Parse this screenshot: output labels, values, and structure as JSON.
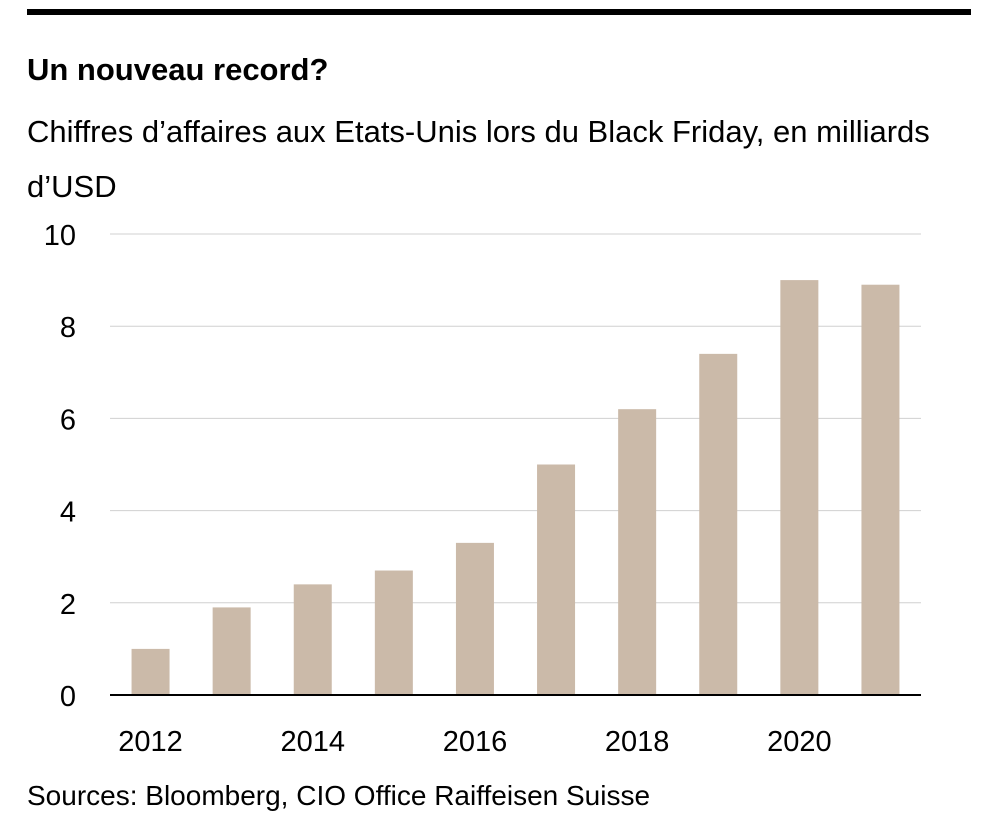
{
  "title": "Un nouveau record?",
  "subtitle": "Chiffres d’affaires aux Etats-Unis lors du Black Friday, en milliards d’USD",
  "source": "Sources: Bloomberg, CIO Office Raiffeisen Suisse",
  "colors": {
    "bar": "#cbbaa9",
    "grid": "#d0d0d0",
    "axis": "#000000",
    "rule": "#000000"
  },
  "chart_data": {
    "type": "bar",
    "title": "Un nouveau record?",
    "subtitle": "Chiffres d’affaires aux Etats-Unis lors du Black Friday, en milliards d’USD",
    "categories": [
      "2012",
      "2013",
      "2014",
      "2015",
      "2016",
      "2017",
      "2018",
      "2019",
      "2020",
      "2021"
    ],
    "values": [
      1.0,
      1.9,
      2.4,
      2.7,
      3.3,
      5.0,
      6.2,
      7.4,
      9.0,
      8.9
    ],
    "x_tick_labels": [
      "2012",
      "2014",
      "2016",
      "2018",
      "2020"
    ],
    "y_ticks": [
      0,
      2,
      4,
      6,
      8,
      10
    ],
    "ylim": [
      0,
      10
    ],
    "xlabel": "",
    "ylabel": "",
    "grid": true,
    "legend": "none"
  }
}
